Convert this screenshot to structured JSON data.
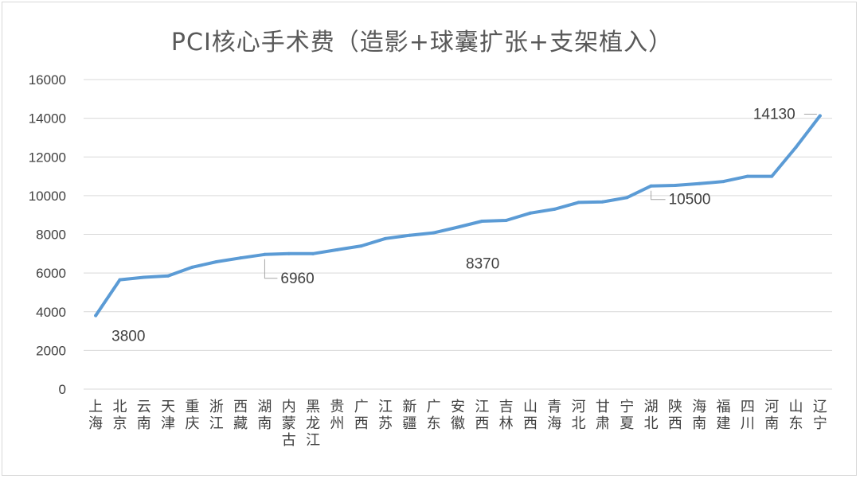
{
  "chart_data": {
    "type": "line",
    "title": "PCI核心手术费（造影+球囊扩张+支架植入）",
    "xlabel": "",
    "ylabel": "",
    "ylim": [
      0,
      16000
    ],
    "yticks": [
      0,
      2000,
      4000,
      6000,
      8000,
      10000,
      12000,
      14000,
      16000
    ],
    "grid": true,
    "legend": "none",
    "line_color": "#5b9bd5",
    "categories": [
      "上海",
      "北京",
      "云南",
      "天津",
      "重庆",
      "浙江",
      "西藏",
      "湖南",
      "内蒙古",
      "黑龙江",
      "贵州",
      "广西",
      "江苏",
      "新疆",
      "广东",
      "安徽",
      "江西",
      "吉林",
      "山西",
      "青海",
      "河北",
      "甘肃",
      "宁夏",
      "湖北",
      "陕西",
      "海南",
      "福建",
      "四川",
      "河南",
      "山东",
      "辽宁"
    ],
    "values": [
      3800,
      5650,
      5780,
      5850,
      6300,
      6580,
      6780,
      6960,
      7000,
      7000,
      7200,
      7400,
      7780,
      7950,
      8080,
      8370,
      8680,
      8720,
      9100,
      9300,
      9650,
      9680,
      9900,
      10500,
      10530,
      10620,
      10730,
      11000,
      11000,
      12500,
      14130
    ],
    "data_labels": [
      {
        "index": 0,
        "text": "3800"
      },
      {
        "index": 7,
        "text": "6960"
      },
      {
        "index": 15,
        "text": "8370"
      },
      {
        "index": 23,
        "text": "10500"
      },
      {
        "index": 30,
        "text": "14130"
      }
    ]
  }
}
